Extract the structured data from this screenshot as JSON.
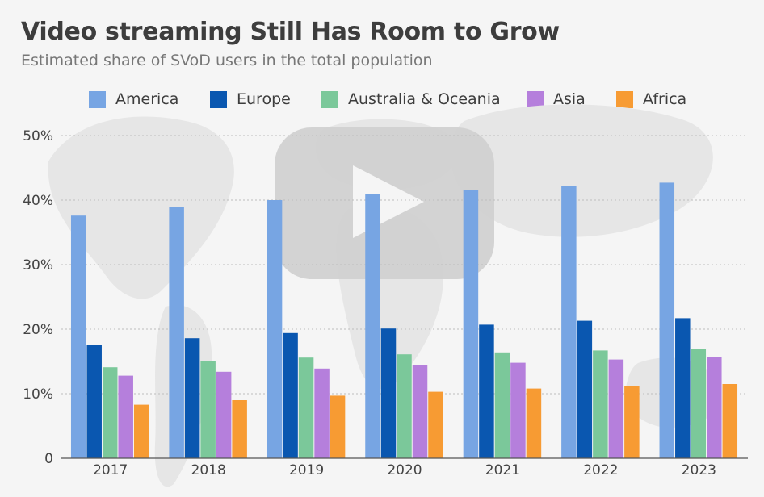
{
  "chart_data": {
    "type": "bar",
    "title": "Video streaming Still Has Room to Grow",
    "subtitle": "Estimated share of SVoD users in the total population",
    "categories": [
      "2017",
      "2018",
      "2019",
      "2020",
      "2021",
      "2022",
      "2023"
    ],
    "series": [
      {
        "name": "America",
        "color": "#77a5e3",
        "values": [
          37.6,
          38.9,
          40.0,
          40.9,
          41.6,
          42.2,
          42.7
        ]
      },
      {
        "name": "Europe",
        "color": "#0a57b0",
        "values": [
          17.6,
          18.6,
          19.4,
          20.1,
          20.7,
          21.3,
          21.7
        ]
      },
      {
        "name": "Australia & Oceania",
        "color": "#7bc89a",
        "values": [
          14.1,
          15.0,
          15.6,
          16.1,
          16.4,
          16.7,
          16.9
        ]
      },
      {
        "name": "Asia",
        "color": "#b57fdc",
        "values": [
          12.8,
          13.4,
          13.9,
          14.4,
          14.8,
          15.3,
          15.7
        ]
      },
      {
        "name": "Africa",
        "color": "#f79b33",
        "values": [
          8.3,
          9.0,
          9.7,
          10.3,
          10.8,
          11.2,
          11.5
        ]
      }
    ],
    "yticks": [
      "0",
      "10%",
      "20%",
      "30%",
      "40%",
      "50%"
    ],
    "ytick_values": [
      0,
      10,
      20,
      30,
      40,
      50
    ],
    "ylim": [
      0,
      50
    ],
    "grid": true,
    "legend_position": "top"
  }
}
